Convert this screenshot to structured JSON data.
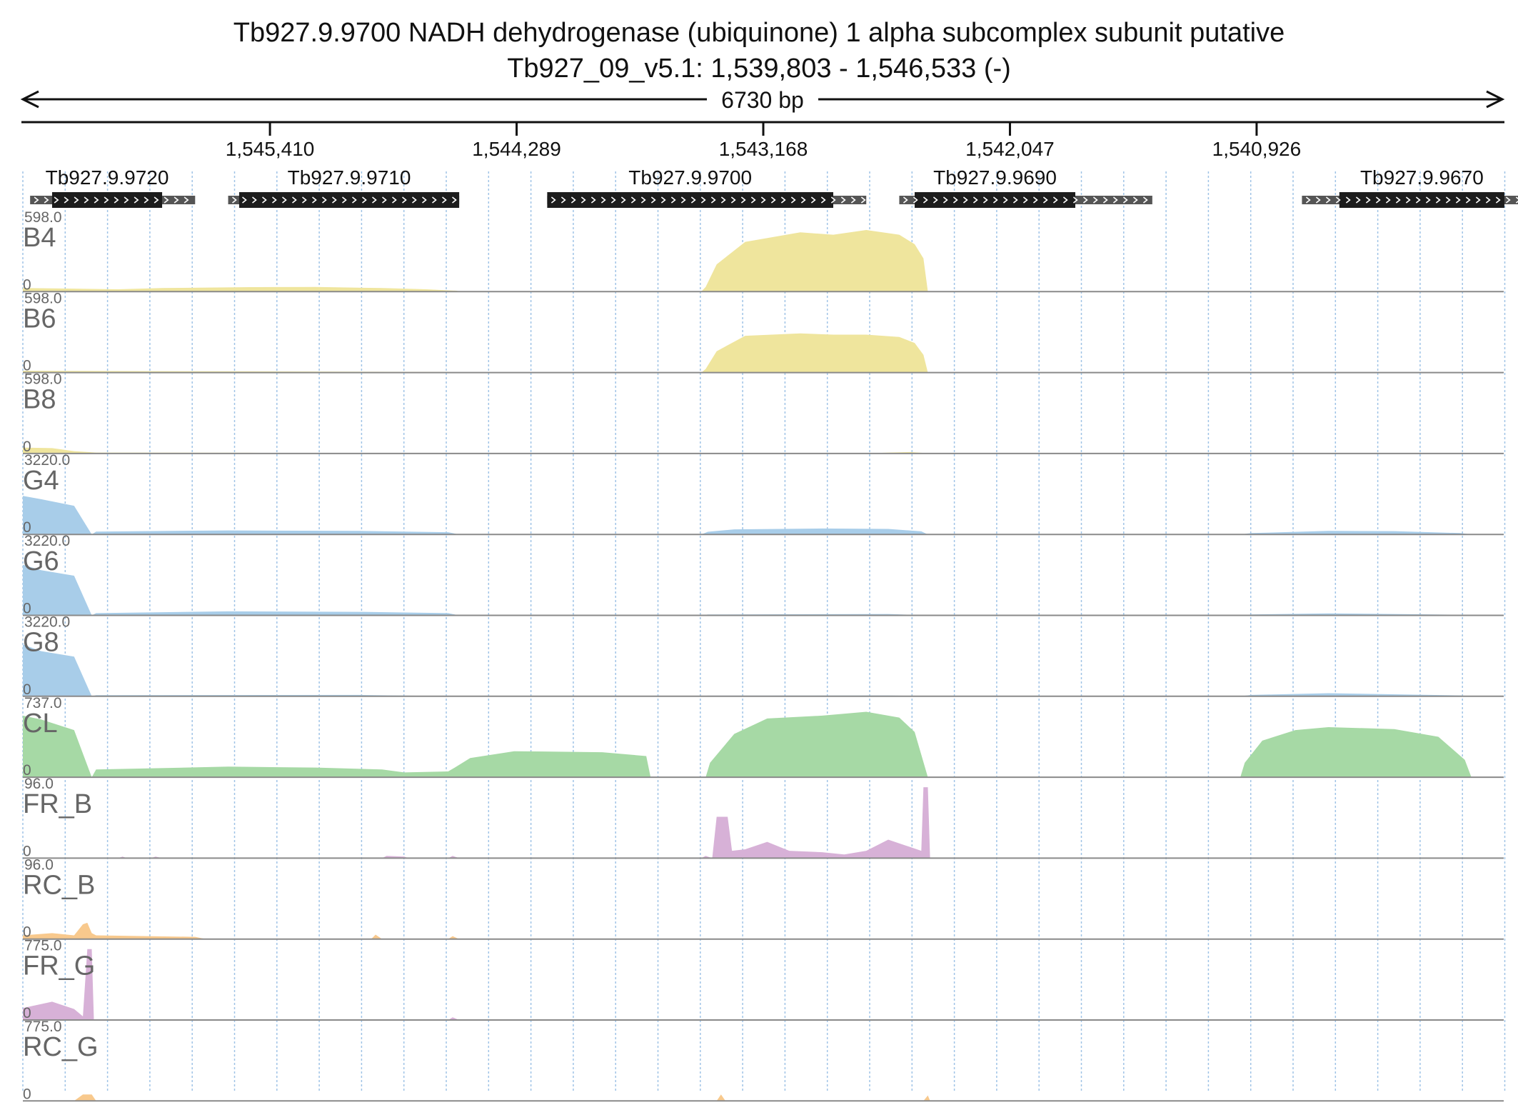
{
  "header": {
    "title": "Tb927.9.9700  NADH dehydrogenase (ubiquinone) 1 alpha subcomplex subunit  putative",
    "subtitle": "Tb927_09_v5.1: 1,539,803 - 1,546,533 (-)",
    "span_label": "6730 bp"
  },
  "colors": {
    "yellow": "#efe59d",
    "blue": "#a8cde9",
    "green": "#a6d9a5",
    "purple": "#d7b1d7",
    "orange": "#f8c98d",
    "gene_body": "#1c1c1c",
    "gene_utr": "#555555",
    "grid": "#9fc3e6",
    "label": "#666666"
  },
  "chart_data": {
    "type": "area",
    "chromosome": "Tb927_09_v5.1",
    "strand": "-",
    "x_range": [
      1546533,
      1539803
    ],
    "x_ticks": [
      "1,545,410",
      "1,544,289",
      "1,543,168",
      "1,542,047",
      "1,540,926"
    ],
    "x_tick_values": [
      1545410,
      1544289,
      1543168,
      1542047,
      1540926
    ],
    "genes": [
      {
        "name": "Tb927.9.9720",
        "start": 1546500,
        "end": 1545750,
        "cds_start": 1546400,
        "cds_end": 1545900
      },
      {
        "name": "Tb927.9.9710",
        "start": 1545600,
        "end": 1544550,
        "cds_start": 1545550,
        "cds_end": 1544550
      },
      {
        "name": "Tb927.9.9700",
        "start": 1544150,
        "end": 1542700,
        "cds_start": 1544150,
        "cds_end": 1542850
      },
      {
        "name": "Tb927.9.9690",
        "start": 1542550,
        "end": 1541400,
        "cds_start": 1542480,
        "cds_end": 1541750
      },
      {
        "name": "Tb927.9.9670",
        "start": 1540720,
        "end": 1539560,
        "cds_start": 1540550,
        "cds_end": 1539800
      }
    ],
    "tracks": [
      {
        "name": "B4",
        "max": "598.0",
        "min": "0",
        "ymax": 598,
        "color": "yellow",
        "points": [
          [
            1546533,
            30
          ],
          [
            1546300,
            25
          ],
          [
            1546100,
            20
          ],
          [
            1545900,
            30
          ],
          [
            1545500,
            38
          ],
          [
            1545200,
            40
          ],
          [
            1544900,
            30
          ],
          [
            1544700,
            20
          ],
          [
            1544560,
            8
          ],
          [
            1544550,
            0
          ],
          [
            1543450,
            0
          ],
          [
            1543430,
            40
          ],
          [
            1543380,
            230
          ],
          [
            1543250,
            420
          ],
          [
            1543000,
            500
          ],
          [
            1542850,
            480
          ],
          [
            1542700,
            520
          ],
          [
            1542550,
            480
          ],
          [
            1542480,
            400
          ],
          [
            1542440,
            280
          ],
          [
            1542420,
            0
          ],
          [
            1539803,
            0
          ]
        ]
      },
      {
        "name": "B6",
        "max": "598.0",
        "min": "0",
        "ymax": 598,
        "color": "yellow",
        "points": [
          [
            1546533,
            15
          ],
          [
            1546000,
            12
          ],
          [
            1545500,
            10
          ],
          [
            1544600,
            5
          ],
          [
            1544550,
            0
          ],
          [
            1543450,
            0
          ],
          [
            1543430,
            30
          ],
          [
            1543380,
            180
          ],
          [
            1543250,
            310
          ],
          [
            1543000,
            330
          ],
          [
            1542850,
            320
          ],
          [
            1542700,
            320
          ],
          [
            1542550,
            300
          ],
          [
            1542480,
            250
          ],
          [
            1542440,
            150
          ],
          [
            1542420,
            0
          ],
          [
            1539803,
            0
          ]
        ]
      },
      {
        "name": "B8",
        "max": "598.0",
        "min": "0",
        "ymax": 598,
        "color": "yellow",
        "points": [
          [
            1546533,
            50
          ],
          [
            1546400,
            45
          ],
          [
            1546300,
            20
          ],
          [
            1546200,
            8
          ],
          [
            1545500,
            6
          ],
          [
            1545000,
            0
          ],
          [
            1542700,
            0
          ],
          [
            1542600,
            8
          ],
          [
            1542500,
            12
          ],
          [
            1542400,
            0
          ],
          [
            1539803,
            0
          ]
        ]
      },
      {
        "name": "G4",
        "max": "3220.0",
        "min": "0",
        "ymax": 3220,
        "color": "blue",
        "points": [
          [
            1546533,
            1750
          ],
          [
            1546450,
            1600
          ],
          [
            1546300,
            1300
          ],
          [
            1546220,
            0
          ],
          [
            1546200,
            130
          ],
          [
            1545600,
            180
          ],
          [
            1545000,
            160
          ],
          [
            1544600,
            100
          ],
          [
            1544550,
            0
          ],
          [
            1543450,
            0
          ],
          [
            1543420,
            120
          ],
          [
            1543300,
            230
          ],
          [
            1542900,
            270
          ],
          [
            1542600,
            250
          ],
          [
            1542450,
            140
          ],
          [
            1542420,
            0
          ],
          [
            1541000,
            0
          ],
          [
            1540950,
            60
          ],
          [
            1540600,
            160
          ],
          [
            1540300,
            150
          ],
          [
            1540000,
            60
          ],
          [
            1539950,
            0
          ],
          [
            1539803,
            0
          ]
        ]
      },
      {
        "name": "G6",
        "max": "3220.0",
        "min": "0",
        "ymax": 3220,
        "color": "blue",
        "points": [
          [
            1546533,
            2300
          ],
          [
            1546450,
            2050
          ],
          [
            1546300,
            1800
          ],
          [
            1546220,
            0
          ],
          [
            1546200,
            100
          ],
          [
            1545600,
            180
          ],
          [
            1545000,
            160
          ],
          [
            1544600,
            100
          ],
          [
            1544550,
            0
          ],
          [
            1543450,
            0
          ],
          [
            1543420,
            40
          ],
          [
            1542600,
            60
          ],
          [
            1542420,
            0
          ],
          [
            1541000,
            0
          ],
          [
            1540950,
            40
          ],
          [
            1540600,
            90
          ],
          [
            1540000,
            30
          ],
          [
            1539950,
            0
          ],
          [
            1539803,
            0
          ]
        ]
      },
      {
        "name": "G8",
        "max": "3220.0",
        "min": "0",
        "ymax": 3220,
        "color": "blue",
        "points": [
          [
            1546533,
            2350
          ],
          [
            1546450,
            2050
          ],
          [
            1546300,
            1800
          ],
          [
            1546220,
            0
          ],
          [
            1546200,
            50
          ],
          [
            1545000,
            60
          ],
          [
            1544550,
            0
          ],
          [
            1543450,
            0
          ],
          [
            1543420,
            30
          ],
          [
            1542600,
            40
          ],
          [
            1542420,
            0
          ],
          [
            1541000,
            0
          ],
          [
            1540950,
            60
          ],
          [
            1540600,
            140
          ],
          [
            1540000,
            40
          ],
          [
            1539950,
            0
          ],
          [
            1539803,
            0
          ]
        ]
      },
      {
        "name": "CL",
        "max": "737.0",
        "min": "0",
        "ymax": 737,
        "color": "green",
        "points": [
          [
            1546533,
            640
          ],
          [
            1546450,
            600
          ],
          [
            1546300,
            490
          ],
          [
            1546220,
            0
          ],
          [
            1546200,
            80
          ],
          [
            1545600,
            110
          ],
          [
            1545200,
            100
          ],
          [
            1544900,
            80
          ],
          [
            1544800,
            50
          ],
          [
            1544600,
            60
          ],
          [
            1544570,
            100
          ],
          [
            1544500,
            200
          ],
          [
            1544300,
            270
          ],
          [
            1543900,
            260
          ],
          [
            1543700,
            220
          ],
          [
            1543680,
            0
          ],
          [
            1543430,
            0
          ],
          [
            1543410,
            150
          ],
          [
            1543300,
            450
          ],
          [
            1543150,
            610
          ],
          [
            1542900,
            640
          ],
          [
            1542700,
            680
          ],
          [
            1542550,
            620
          ],
          [
            1542480,
            470
          ],
          [
            1542420,
            0
          ],
          [
            1541000,
            0
          ],
          [
            1540980,
            150
          ],
          [
            1540900,
            380
          ],
          [
            1540750,
            490
          ],
          [
            1540600,
            520
          ],
          [
            1540300,
            500
          ],
          [
            1540100,
            420
          ],
          [
            1539980,
            180
          ],
          [
            1539950,
            0
          ],
          [
            1539803,
            0
          ]
        ]
      },
      {
        "name": "FR_B",
        "max": "96.0",
        "min": "0",
        "ymax": 96,
        "color": "purple",
        "points": [
          [
            1546533,
            0
          ],
          [
            1546100,
            0
          ],
          [
            1546080,
            2
          ],
          [
            1546060,
            0
          ],
          [
            1545950,
            0
          ],
          [
            1545930,
            2
          ],
          [
            1545900,
            0
          ],
          [
            1544900,
            0
          ],
          [
            1544880,
            3
          ],
          [
            1544800,
            2
          ],
          [
            1544780,
            0
          ],
          [
            1544600,
            0
          ],
          [
            1544580,
            3
          ],
          [
            1544550,
            0
          ],
          [
            1543450,
            0
          ],
          [
            1543430,
            3
          ],
          [
            1543400,
            0
          ],
          [
            1543380,
            56
          ],
          [
            1543330,
            56
          ],
          [
            1543310,
            10
          ],
          [
            1543250,
            12
          ],
          [
            1543150,
            22
          ],
          [
            1543050,
            10
          ],
          [
            1542900,
            8
          ],
          [
            1542800,
            5
          ],
          [
            1542700,
            10
          ],
          [
            1542600,
            25
          ],
          [
            1542550,
            20
          ],
          [
            1542500,
            15
          ],
          [
            1542450,
            10
          ],
          [
            1542440,
            96
          ],
          [
            1542420,
            96
          ],
          [
            1542410,
            0
          ],
          [
            1539803,
            0
          ]
        ]
      },
      {
        "name": "RC_B",
        "max": "96.0",
        "min": "0",
        "ymax": 96,
        "color": "orange",
        "points": [
          [
            1546533,
            5
          ],
          [
            1546400,
            8
          ],
          [
            1546300,
            5
          ],
          [
            1546260,
            20
          ],
          [
            1546240,
            22
          ],
          [
            1546220,
            8
          ],
          [
            1546200,
            5
          ],
          [
            1545750,
            3
          ],
          [
            1545700,
            0
          ],
          [
            1544950,
            0
          ],
          [
            1544930,
            6
          ],
          [
            1544900,
            0
          ],
          [
            1544600,
            0
          ],
          [
            1544580,
            4
          ],
          [
            1544550,
            0
          ],
          [
            1539803,
            0
          ]
        ]
      },
      {
        "name": "FR_G",
        "max": "775.0",
        "min": "0",
        "ymax": 775,
        "color": "purple",
        "points": [
          [
            1546533,
            130
          ],
          [
            1546400,
            200
          ],
          [
            1546300,
            120
          ],
          [
            1546260,
            40
          ],
          [
            1546240,
            775
          ],
          [
            1546220,
            775
          ],
          [
            1546210,
            0
          ],
          [
            1544600,
            0
          ],
          [
            1544580,
            30
          ],
          [
            1544550,
            0
          ],
          [
            1539803,
            0
          ]
        ]
      },
      {
        "name": "RC_G",
        "max": "775.0",
        "min": "0",
        "ymax": 775,
        "color": "orange",
        "points": [
          [
            1546533,
            0
          ],
          [
            1546300,
            0
          ],
          [
            1546260,
            70
          ],
          [
            1546220,
            70
          ],
          [
            1546200,
            0
          ],
          [
            1543380,
            0
          ],
          [
            1543360,
            70
          ],
          [
            1543340,
            0
          ],
          [
            1542440,
            0
          ],
          [
            1542420,
            60
          ],
          [
            1542410,
            0
          ],
          [
            1539803,
            0
          ]
        ]
      }
    ]
  }
}
